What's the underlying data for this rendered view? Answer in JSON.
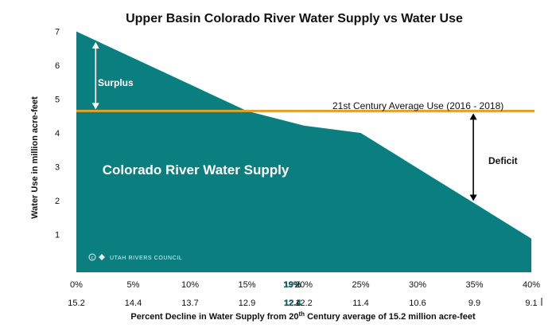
{
  "chart_data": {
    "type": "area",
    "title": "Upper Basin Colorado River Water Supply vs Water Use",
    "ylabel": "Water Use in million acre-feet",
    "xlabel": "Percent Decline in Water Supply from 20th Century average of 15.2 million acre-feet",
    "xlabel_parts": {
      "before": "Percent Decline in Water Supply from 20",
      "superscript": "th",
      "after": " Century average of 15.2 million acre-feet"
    },
    "ylim": [
      0.2,
      7.2
    ],
    "y_ticks": [
      "1",
      "2",
      "3",
      "4",
      "5",
      "6",
      "7"
    ],
    "x_ticks_percent": [
      "0%",
      "5%",
      "10%",
      "15%",
      "19%",
      "20%",
      "25%",
      "30%",
      "35%",
      "40%"
    ],
    "x_ticks_supply": [
      "15.2",
      "14.4",
      "13.7",
      "12.9",
      "12.4",
      "12.2",
      "11.4",
      "10.6",
      "9.9",
      "9.1"
    ],
    "highlight_tick": "19%",
    "supply_series": {
      "name": "Colorado River Water Supply",
      "x": [
        0,
        15,
        20,
        25,
        40
      ],
      "y": [
        7.0,
        4.65,
        4.22,
        4.0,
        0.88
      ]
    },
    "use_line": {
      "label": "21st Century Average Use (2016 - 2018)",
      "value": 4.65
    },
    "annotations": {
      "surplus": "Surplus",
      "deficit": "Deficit"
    },
    "logo_text": "UTAH RIVERS COUNCIL",
    "colors": {
      "supply_fill": "#0b7f80",
      "use_line": "#e3a02a",
      "arrow_white": "#ffffff",
      "arrow_black": "#000000",
      "highlight": "#0b6e70"
    }
  }
}
